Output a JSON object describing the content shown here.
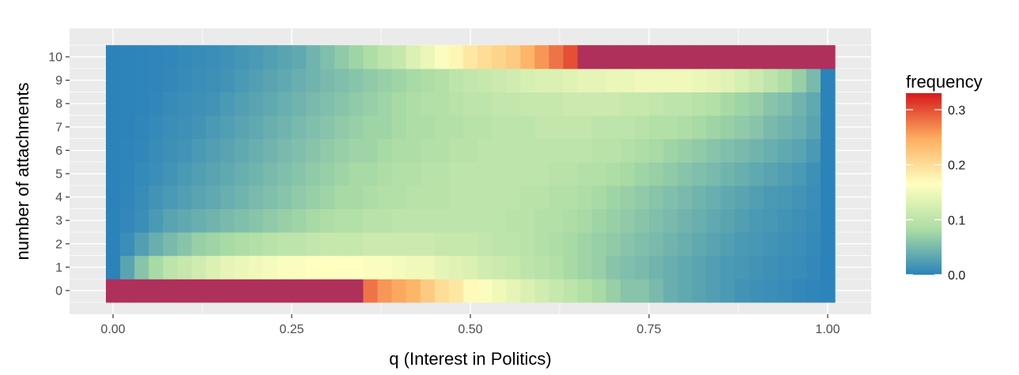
{
  "chart_data": {
    "type": "heatmap",
    "title": "",
    "xlabel": "q (Interest in Politics)",
    "ylabel": "number of attachments",
    "xlim": [
      -0.1,
      1.03
    ],
    "x_ticks": [
      0.0,
      0.25,
      0.5,
      0.75,
      1.0
    ],
    "x_tick_labels": [
      "0.00",
      "0.25",
      "0.50",
      "0.75",
      "1.00"
    ],
    "y_categories": [
      "0",
      "1",
      "2",
      "3",
      "4",
      "5",
      "6",
      "7",
      "8",
      "9",
      "10"
    ],
    "q_start": 0.0,
    "q_step": 0.02,
    "q_count": 51,
    "grid": true,
    "legend": {
      "title": "frequency",
      "placement": "right",
      "min": 0.0,
      "max": 0.33,
      "tick_values": [
        0.0,
        0.1,
        0.2,
        0.3
      ],
      "tick_labels": [
        "0.0",
        "0.1",
        "0.2",
        "0.3"
      ],
      "colors": [
        "#2b83ba",
        "#abdda4",
        "#ffffbf",
        "#fdae61",
        "#d7191c"
      ],
      "cap_color": "#b0305c"
    },
    "rows": {
      "0": [
        0.33,
        0.33,
        0.33,
        0.33,
        0.33,
        0.33,
        0.33,
        0.33,
        0.33,
        0.33,
        0.33,
        0.33,
        0.33,
        0.33,
        0.33,
        0.33,
        0.33,
        0.33,
        0.28,
        0.26,
        0.25,
        0.24,
        0.22,
        0.2,
        0.19,
        0.17,
        0.16,
        0.15,
        0.14,
        0.13,
        0.12,
        0.11,
        0.1,
        0.09,
        0.08,
        0.07,
        0.06,
        0.06,
        0.05,
        0.04,
        0.035,
        0.03,
        0.025,
        0.02,
        0.015,
        0.012,
        0.01,
        0.008,
        0.005,
        0.003,
        0.001
      ],
      "1": [
        0.0,
        0.03,
        0.06,
        0.08,
        0.1,
        0.11,
        0.12,
        0.13,
        0.14,
        0.145,
        0.15,
        0.155,
        0.16,
        0.16,
        0.165,
        0.165,
        0.165,
        0.165,
        0.16,
        0.16,
        0.155,
        0.15,
        0.15,
        0.14,
        0.135,
        0.13,
        0.12,
        0.115,
        0.11,
        0.1,
        0.095,
        0.09,
        0.08,
        0.075,
        0.07,
        0.06,
        0.055,
        0.05,
        0.045,
        0.04,
        0.035,
        0.03,
        0.025,
        0.02,
        0.018,
        0.015,
        0.012,
        0.01,
        0.008,
        0.005,
        0.0
      ],
      "2": [
        0.0,
        0.01,
        0.025,
        0.04,
        0.05,
        0.06,
        0.07,
        0.075,
        0.08,
        0.085,
        0.09,
        0.095,
        0.1,
        0.1,
        0.105,
        0.11,
        0.11,
        0.11,
        0.115,
        0.115,
        0.115,
        0.115,
        0.115,
        0.11,
        0.11,
        0.11,
        0.105,
        0.1,
        0.1,
        0.095,
        0.09,
        0.085,
        0.08,
        0.075,
        0.07,
        0.065,
        0.06,
        0.055,
        0.05,
        0.045,
        0.04,
        0.035,
        0.03,
        0.025,
        0.02,
        0.018,
        0.015,
        0.012,
        0.01,
        0.006,
        0.0
      ],
      "3": [
        0.0,
        0.005,
        0.01,
        0.02,
        0.03,
        0.035,
        0.04,
        0.045,
        0.05,
        0.055,
        0.06,
        0.065,
        0.07,
        0.075,
        0.08,
        0.085,
        0.09,
        0.09,
        0.095,
        0.095,
        0.1,
        0.1,
        0.1,
        0.1,
        0.1,
        0.1,
        0.1,
        0.1,
        0.095,
        0.095,
        0.09,
        0.09,
        0.085,
        0.08,
        0.075,
        0.07,
        0.065,
        0.06,
        0.055,
        0.05,
        0.045,
        0.04,
        0.035,
        0.03,
        0.025,
        0.02,
        0.018,
        0.015,
        0.012,
        0.008,
        0.0
      ],
      "4": [
        0.0,
        0.003,
        0.008,
        0.015,
        0.02,
        0.025,
        0.03,
        0.035,
        0.04,
        0.045,
        0.05,
        0.055,
        0.06,
        0.065,
        0.07,
        0.075,
        0.08,
        0.08,
        0.085,
        0.09,
        0.09,
        0.095,
        0.095,
        0.095,
        0.1,
        0.1,
        0.1,
        0.1,
        0.1,
        0.095,
        0.095,
        0.09,
        0.09,
        0.085,
        0.08,
        0.075,
        0.07,
        0.065,
        0.06,
        0.055,
        0.05,
        0.045,
        0.04,
        0.035,
        0.03,
        0.025,
        0.02,
        0.018,
        0.015,
        0.01,
        0.0
      ],
      "5": [
        0.0,
        0.002,
        0.006,
        0.01,
        0.015,
        0.02,
        0.025,
        0.03,
        0.035,
        0.04,
        0.045,
        0.05,
        0.055,
        0.06,
        0.065,
        0.07,
        0.075,
        0.08,
        0.08,
        0.085,
        0.09,
        0.09,
        0.095,
        0.095,
        0.1,
        0.1,
        0.1,
        0.1,
        0.1,
        0.1,
        0.1,
        0.095,
        0.095,
        0.09,
        0.09,
        0.085,
        0.08,
        0.075,
        0.07,
        0.065,
        0.06,
        0.055,
        0.05,
        0.045,
        0.04,
        0.035,
        0.03,
        0.025,
        0.02,
        0.012,
        0.0
      ],
      "6": [
        0.0,
        0.002,
        0.004,
        0.008,
        0.012,
        0.015,
        0.02,
        0.025,
        0.03,
        0.035,
        0.04,
        0.045,
        0.05,
        0.055,
        0.06,
        0.065,
        0.07,
        0.075,
        0.075,
        0.08,
        0.085,
        0.085,
        0.09,
        0.09,
        0.095,
        0.095,
        0.1,
        0.1,
        0.1,
        0.1,
        0.1,
        0.1,
        0.1,
        0.1,
        0.095,
        0.095,
        0.09,
        0.085,
        0.08,
        0.075,
        0.07,
        0.065,
        0.06,
        0.055,
        0.05,
        0.045,
        0.04,
        0.035,
        0.03,
        0.02,
        0.0
      ],
      "7": [
        0.0,
        0.001,
        0.003,
        0.006,
        0.01,
        0.012,
        0.015,
        0.02,
        0.025,
        0.03,
        0.035,
        0.04,
        0.045,
        0.05,
        0.055,
        0.06,
        0.065,
        0.07,
        0.075,
        0.075,
        0.08,
        0.085,
        0.085,
        0.09,
        0.09,
        0.095,
        0.095,
        0.1,
        0.1,
        0.1,
        0.105,
        0.105,
        0.105,
        0.105,
        0.1,
        0.1,
        0.1,
        0.095,
        0.09,
        0.09,
        0.085,
        0.08,
        0.075,
        0.07,
        0.065,
        0.06,
        0.05,
        0.045,
        0.04,
        0.03,
        0.0
      ],
      "8": [
        0.0,
        0.001,
        0.002,
        0.004,
        0.007,
        0.01,
        0.012,
        0.015,
        0.02,
        0.025,
        0.03,
        0.035,
        0.04,
        0.045,
        0.05,
        0.055,
        0.06,
        0.065,
        0.07,
        0.075,
        0.08,
        0.085,
        0.09,
        0.09,
        0.095,
        0.1,
        0.1,
        0.105,
        0.105,
        0.11,
        0.11,
        0.11,
        0.115,
        0.115,
        0.115,
        0.115,
        0.11,
        0.11,
        0.105,
        0.1,
        0.1,
        0.095,
        0.09,
        0.08,
        0.075,
        0.07,
        0.06,
        0.055,
        0.045,
        0.035,
        0.0
      ],
      "9": [
        0.0,
        0.001,
        0.002,
        0.003,
        0.005,
        0.007,
        0.01,
        0.012,
        0.015,
        0.02,
        0.025,
        0.03,
        0.035,
        0.04,
        0.045,
        0.05,
        0.055,
        0.06,
        0.065,
        0.07,
        0.075,
        0.08,
        0.085,
        0.09,
        0.1,
        0.105,
        0.11,
        0.115,
        0.12,
        0.125,
        0.13,
        0.13,
        0.135,
        0.14,
        0.14,
        0.145,
        0.145,
        0.15,
        0.15,
        0.15,
        0.15,
        0.145,
        0.14,
        0.135,
        0.125,
        0.115,
        0.1,
        0.085,
        0.07,
        0.05,
        0.0
      ],
      "10": [
        0.0,
        0.001,
        0.002,
        0.003,
        0.004,
        0.006,
        0.008,
        0.01,
        0.013,
        0.017,
        0.02,
        0.025,
        0.03,
        0.035,
        0.045,
        0.055,
        0.065,
        0.075,
        0.085,
        0.1,
        0.11,
        0.13,
        0.145,
        0.16,
        0.175,
        0.19,
        0.2,
        0.21,
        0.22,
        0.24,
        0.26,
        0.28,
        0.3,
        0.33,
        0.33,
        0.33,
        0.33,
        0.33,
        0.33,
        0.33,
        0.33,
        0.33,
        0.33,
        0.33,
        0.33,
        0.33,
        0.33,
        0.33,
        0.33,
        0.33,
        0.33
      ]
    }
  }
}
